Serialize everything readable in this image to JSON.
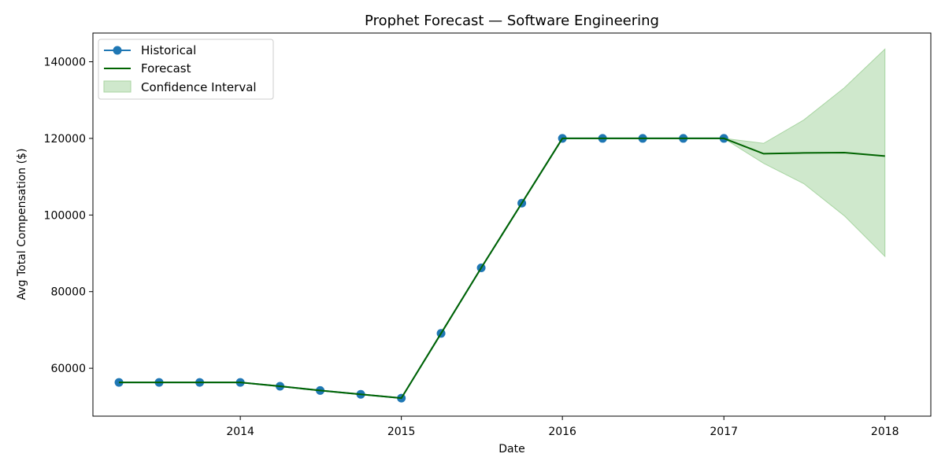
{
  "chart_data": {
    "type": "line",
    "title": "Prophet Forecast — Software Engineering",
    "xlabel": "Date",
    "ylabel": "Avg Total Compensation ($)",
    "xlim": [
      "2013-02-01",
      "2018-04-15"
    ],
    "ylim": [
      47500,
      147500
    ],
    "x_ticks": [
      "2014-01-01",
      "2015-01-01",
      "2016-01-01",
      "2017-01-01",
      "2018-01-01"
    ],
    "x_tick_labels": [
      "2014",
      "2015",
      "2016",
      "2017",
      "2018"
    ],
    "y_ticks": [
      60000,
      80000,
      100000,
      120000,
      140000
    ],
    "y_tick_labels": [
      "60000",
      "80000",
      "100000",
      "120000",
      "140000"
    ],
    "grid": false,
    "legend_position": "top-left",
    "colors": {
      "historical": "#1f77b4",
      "forecast": "#006400",
      "confidence": "#a8d5a2"
    },
    "series": [
      {
        "name": "Historical",
        "style": "line-marker",
        "x": [
          "2013-04-01",
          "2013-07-01",
          "2013-10-01",
          "2014-01-01",
          "2014-04-01",
          "2014-07-01",
          "2014-10-01",
          "2015-01-01",
          "2015-04-01",
          "2015-07-01",
          "2015-10-01",
          "2016-01-01",
          "2016-04-01",
          "2016-07-01",
          "2016-10-01",
          "2017-01-01"
        ],
        "y": [
          56300,
          56300,
          56300,
          56300,
          55300,
          54200,
          53200,
          52200,
          69100,
          86200,
          103100,
          120000,
          120000,
          120000,
          120000,
          120000
        ]
      },
      {
        "name": "Forecast",
        "style": "line",
        "x": [
          "2013-04-01",
          "2013-07-01",
          "2013-10-01",
          "2014-01-01",
          "2014-04-01",
          "2014-07-01",
          "2014-10-01",
          "2015-01-01",
          "2015-04-01",
          "2015-07-01",
          "2015-10-01",
          "2016-01-01",
          "2016-04-01",
          "2016-07-01",
          "2016-10-01",
          "2017-01-01",
          "2017-04-01",
          "2017-07-01",
          "2017-10-01",
          "2018-01-01"
        ],
        "y": [
          56300,
          56300,
          56300,
          56300,
          55300,
          54200,
          53200,
          52200,
          69100,
          86200,
          103100,
          120000,
          120000,
          120000,
          120000,
          120000,
          116000,
          116200,
          116300,
          115400
        ]
      },
      {
        "name": "Confidence Interval",
        "style": "band",
        "x": [
          "2017-01-01",
          "2017-04-01",
          "2017-07-01",
          "2017-10-01",
          "2018-01-01"
        ],
        "lower": [
          120000,
          113500,
          108200,
          99800,
          89200
        ],
        "upper": [
          120000,
          118700,
          124800,
          133200,
          143300
        ]
      }
    ]
  }
}
